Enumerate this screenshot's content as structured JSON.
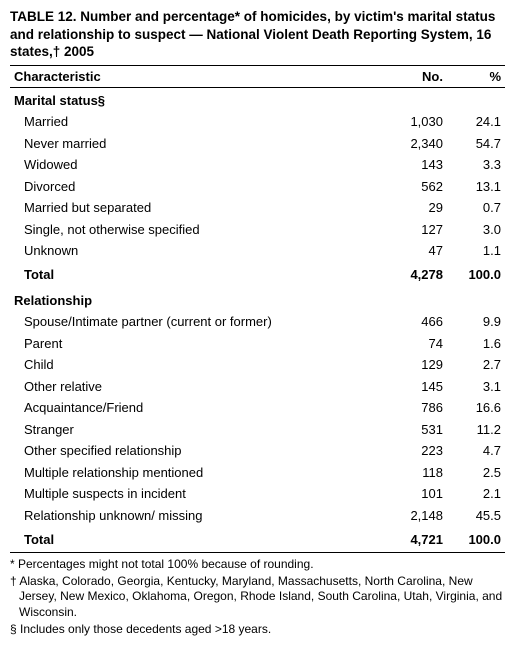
{
  "title": "TABLE 12. Number and percentage* of homicides, by victim's marital status and relationship to suspect — National Violent Death Reporting System, 16 states,† 2005",
  "columns": {
    "characteristic": "Characteristic",
    "no": "No.",
    "pct": "%"
  },
  "sections": [
    {
      "heading": "Marital status§",
      "rows": [
        {
          "label": "Married",
          "no": "1,030",
          "pct": "24.1"
        },
        {
          "label": "Never married",
          "no": "2,340",
          "pct": "54.7"
        },
        {
          "label": "Widowed",
          "no": "143",
          "pct": "3.3"
        },
        {
          "label": "Divorced",
          "no": "562",
          "pct": "13.1"
        },
        {
          "label": "Married but separated",
          "no": "29",
          "pct": "0.7"
        },
        {
          "label": "Single, not otherwise specified",
          "no": "127",
          "pct": "3.0"
        },
        {
          "label": "Unknown",
          "no": "47",
          "pct": "1.1"
        }
      ],
      "total": {
        "label": "Total",
        "no": "4,278",
        "pct": "100.0"
      }
    },
    {
      "heading": "Relationship",
      "rows": [
        {
          "label": "Spouse/Intimate partner (current or former)",
          "no": "466",
          "pct": "9.9"
        },
        {
          "label": "Parent",
          "no": "74",
          "pct": "1.6"
        },
        {
          "label": "Child",
          "no": "129",
          "pct": "2.7"
        },
        {
          "label": "Other relative",
          "no": "145",
          "pct": "3.1"
        },
        {
          "label": "Acquaintance/Friend",
          "no": "786",
          "pct": "16.6"
        },
        {
          "label": "Stranger",
          "no": "531",
          "pct": "11.2"
        },
        {
          "label": "Other specified relationship",
          "no": "223",
          "pct": "4.7"
        },
        {
          "label": "Multiple relationship mentioned",
          "no": "118",
          "pct": "2.5"
        },
        {
          "label": "Multiple suspects in incident",
          "no": "101",
          "pct": "2.1"
        },
        {
          "label": "Relationship unknown/ missing",
          "no": "2,148",
          "pct": "45.5"
        }
      ],
      "total": {
        "label": "Total",
        "no": "4,721",
        "pct": "100.0"
      }
    }
  ],
  "footnotes": [
    "* Percentages might not total 100% because of rounding.",
    "† Alaska, Colorado, Georgia, Kentucky, Maryland, Massachusetts, North Carolina, New Jersey, New Mexico, Oklahoma, Oregon, Rhode Island, South Carolina, Utah, Virginia, and Wisconsin.",
    "§ Includes only those decedents aged >18 years."
  ]
}
